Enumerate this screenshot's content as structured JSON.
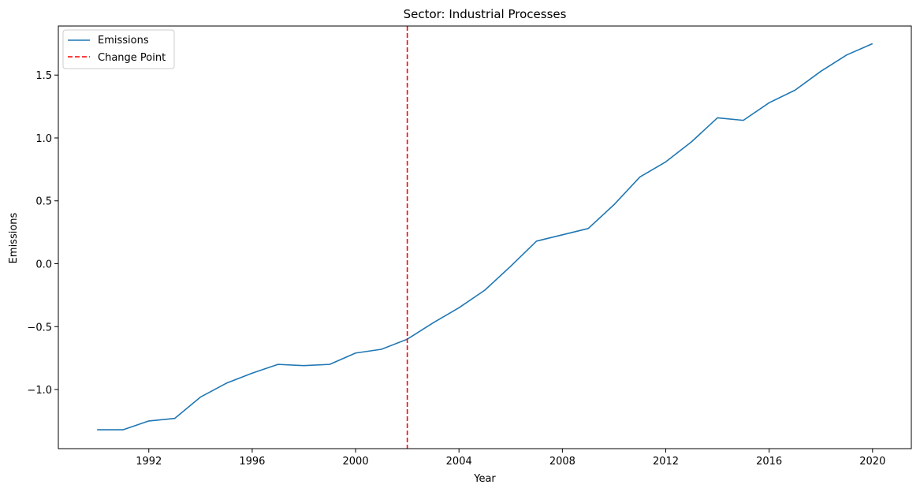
{
  "chart_data": {
    "type": "line",
    "title": "Sector: Industrial Processes",
    "xlabel": "Year",
    "ylabel": "Emissions",
    "xlim": [
      1988.5,
      2021.5
    ],
    "ylim": [
      -1.47,
      1.89
    ],
    "xticks": [
      1992,
      1996,
      2000,
      2004,
      2008,
      2012,
      2016,
      2020
    ],
    "yticks": [
      -1.0,
      -0.5,
      0.0,
      0.5,
      1.0,
      1.5
    ],
    "ytick_labels": [
      "−1.0",
      "−0.5",
      "0.0",
      "0.5",
      "1.0",
      "1.5"
    ],
    "grid": false,
    "legend_position": "top-left",
    "series": [
      {
        "name": "Emissions",
        "color": "#1f77b4",
        "x": [
          1990,
          1991,
          1992,
          1993,
          1994,
          1995,
          1996,
          1997,
          1998,
          1999,
          2000,
          2001,
          2002,
          2003,
          2004,
          2005,
          2006,
          2007,
          2008,
          2009,
          2010,
          2011,
          2012,
          2013,
          2014,
          2015,
          2016,
          2017,
          2018,
          2019,
          2020
        ],
        "y": [
          -1.32,
          -1.32,
          -1.25,
          -1.23,
          -1.06,
          -0.95,
          -0.87,
          -0.8,
          -0.81,
          -0.8,
          -0.71,
          -0.68,
          -0.6,
          -0.47,
          -0.35,
          -0.21,
          -0.02,
          0.18,
          0.23,
          0.28,
          0.47,
          0.69,
          0.81,
          0.97,
          1.16,
          1.14,
          1.28,
          1.38,
          1.53,
          1.66,
          1.75
        ]
      }
    ],
    "change_point": {
      "name": "Change Point",
      "x": 2002,
      "color": "#ff0000"
    }
  }
}
